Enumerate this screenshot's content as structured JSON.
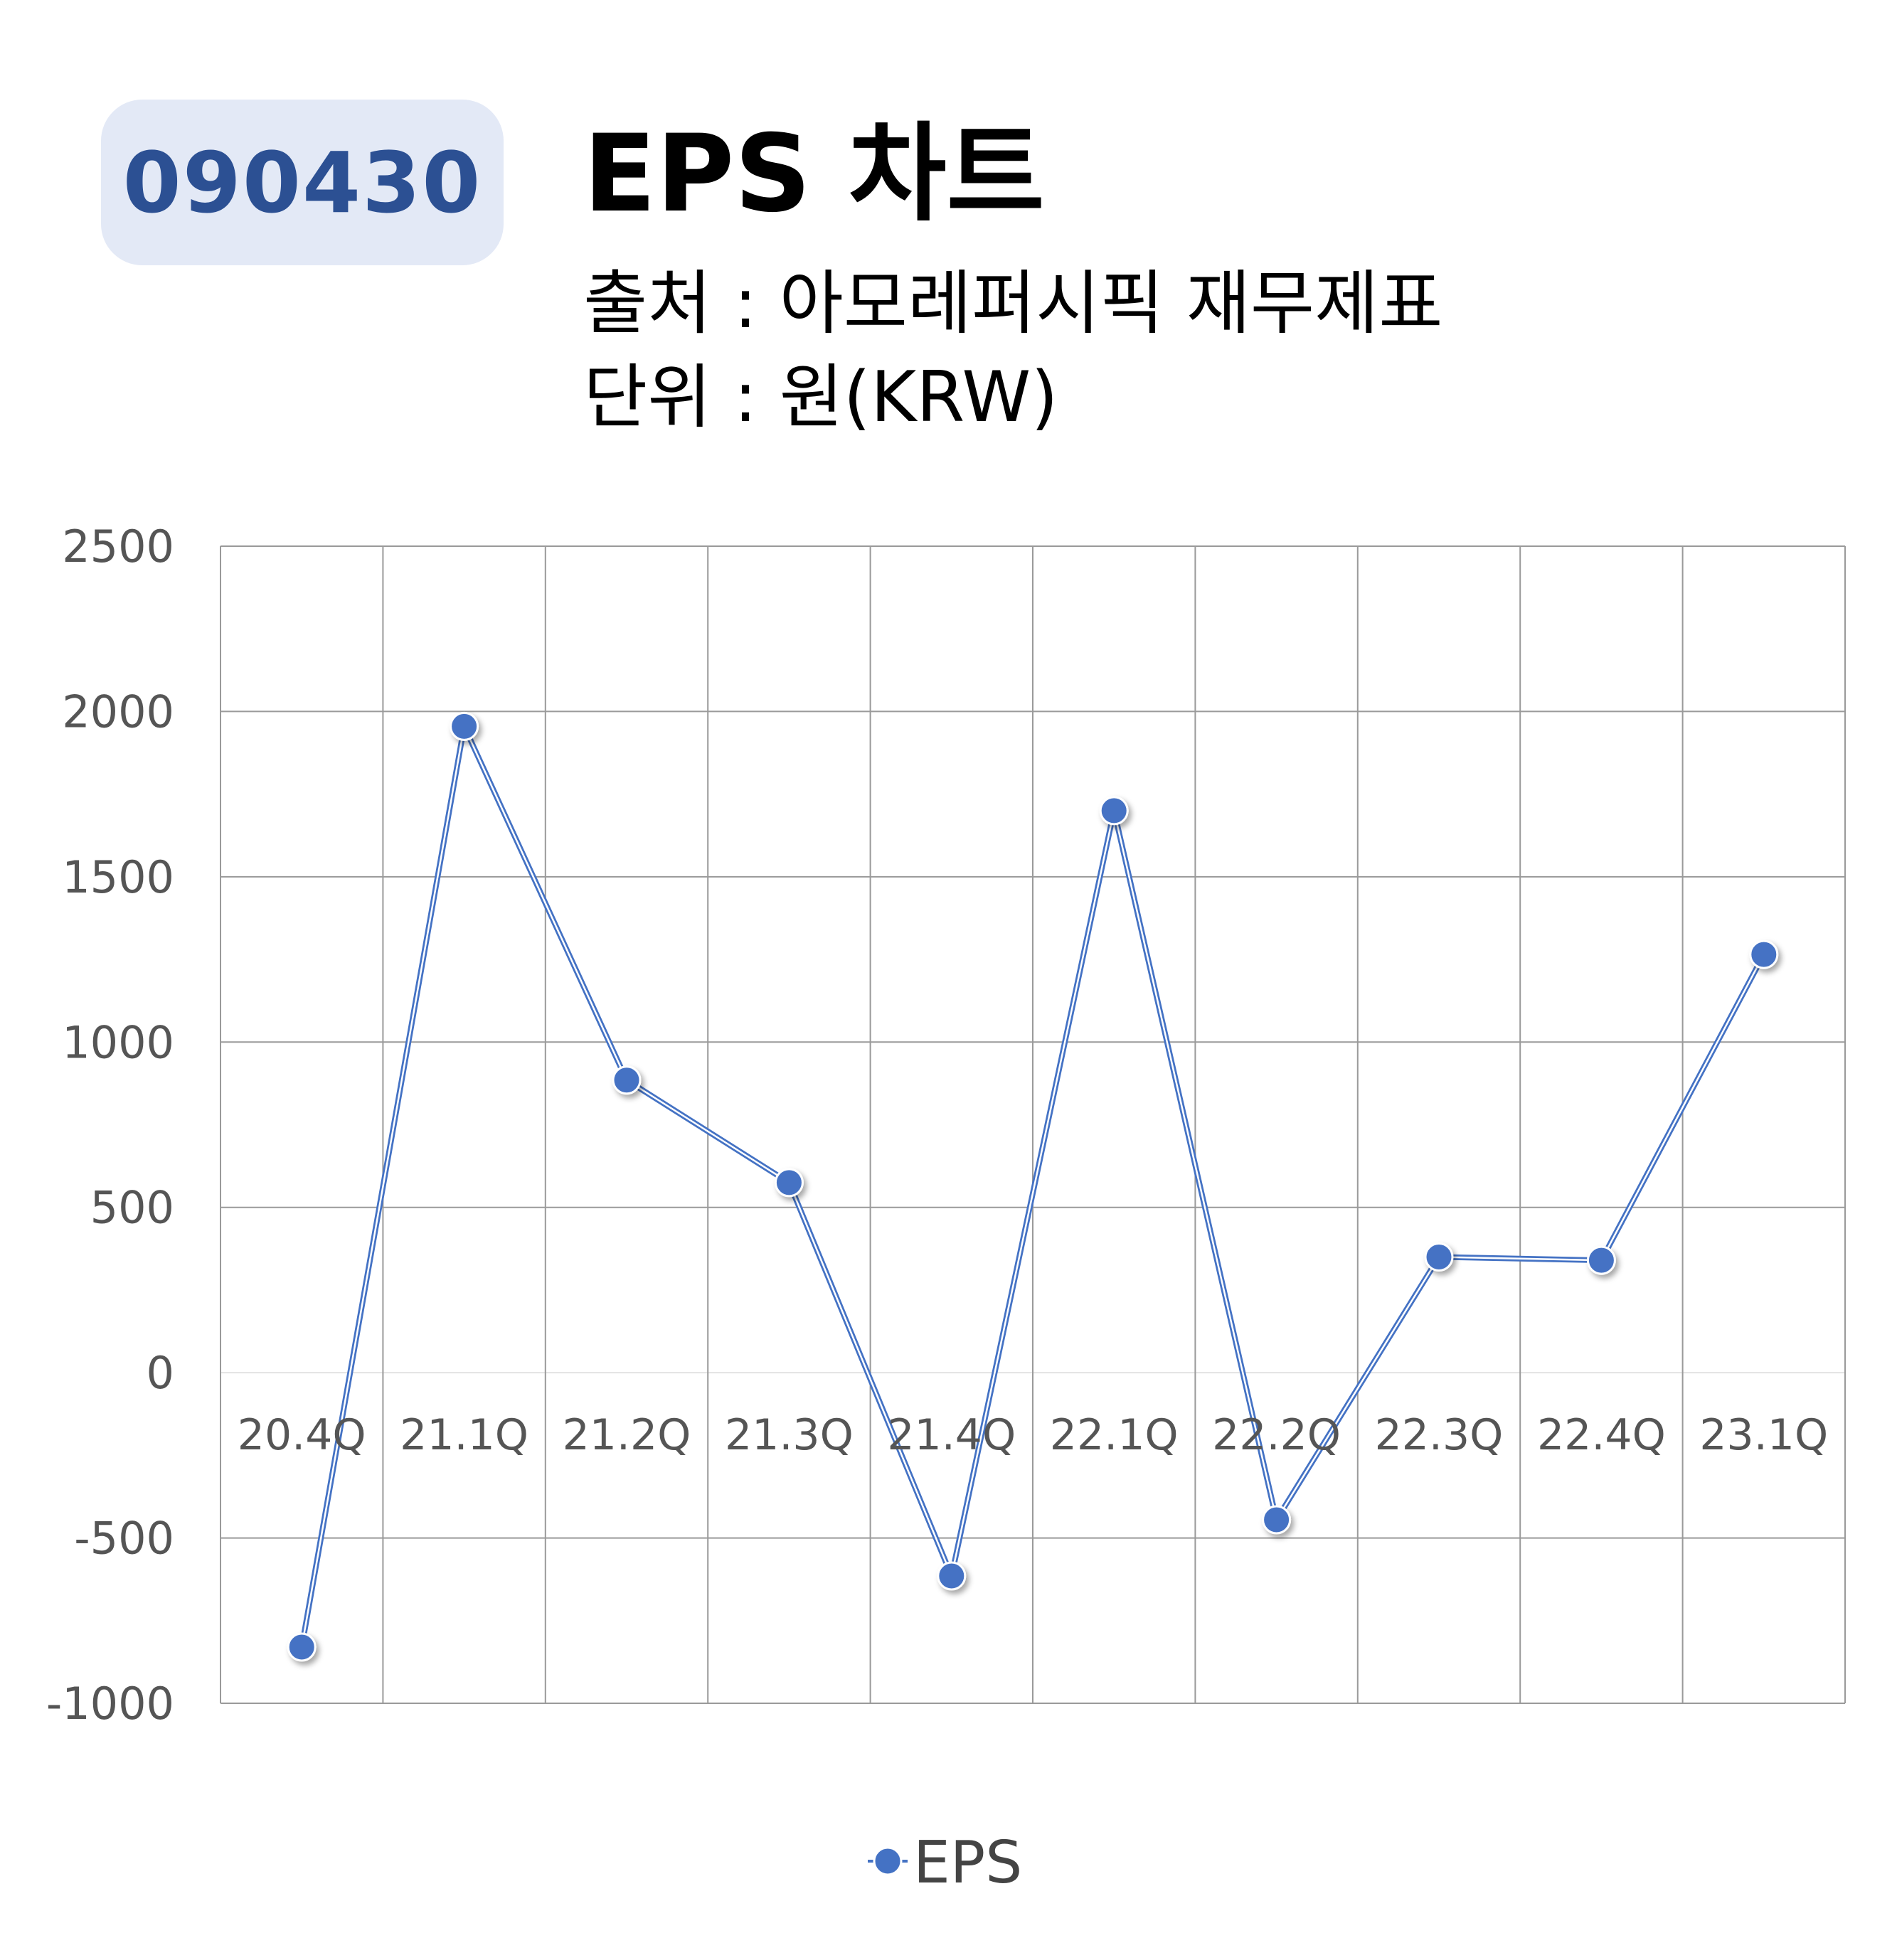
{
  "header": {
    "ticker": "090430",
    "title": "EPS 차트",
    "source": "출처 : 아모레퍼시픽 재무제표",
    "unit": "단위 : 원(KRW)"
  },
  "colors": {
    "series": "#4472c4",
    "badge_bg": "#e3e9f6",
    "badge_text": "#2c5093",
    "grid": "#9a9a9a"
  },
  "chart_data": {
    "type": "line",
    "categories": [
      "20.4Q",
      "21.1Q",
      "21.2Q",
      "21.3Q",
      "21.4Q",
      "22.1Q",
      "22.2Q",
      "22.3Q",
      "22.4Q",
      "23.1Q"
    ],
    "series": [
      {
        "name": "EPS",
        "values": [
          -830,
          1955,
          885,
          575,
          -615,
          1700,
          -445,
          350,
          340,
          1265
        ]
      }
    ],
    "ylim": [
      -1000,
      2500
    ],
    "yticks": [
      2500,
      2000,
      1500,
      1000,
      500,
      0,
      -500,
      -1000
    ],
    "grid": true,
    "legend": "bottom-center",
    "markers": "circle"
  }
}
